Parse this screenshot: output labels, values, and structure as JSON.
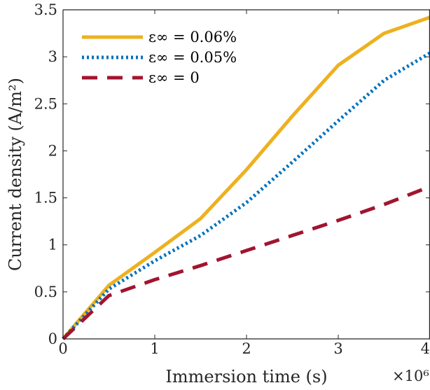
{
  "chart_data": {
    "type": "line",
    "xlabel": "Immersion time (s)",
    "ylabel": "Current density (A/m²)",
    "x_multiplier": "×10⁶",
    "xlim": [
      0,
      4
    ],
    "ylim": [
      0,
      3.5
    ],
    "x_ticks": [
      "0",
      "1",
      "2",
      "3",
      "4"
    ],
    "y_ticks": [
      "0",
      "0.5",
      "1",
      "1.5",
      "2",
      "2.5",
      "3",
      "3.5"
    ],
    "legend_position": "top-left",
    "series": [
      {
        "name": "ε∞ = 0.06%",
        "color": "#EDB120",
        "style": "solid",
        "x": [
          0,
          0.5,
          1,
          1.5,
          2,
          2.5,
          3,
          3.5,
          4
        ],
        "y": [
          0,
          0.57,
          0.92,
          1.28,
          1.8,
          2.37,
          2.91,
          3.25,
          3.42
        ]
      },
      {
        "name": "ε∞ = 0.05%",
        "color": "#0072BD",
        "style": "dotted",
        "x": [
          0,
          0.5,
          1,
          1.5,
          2,
          2.5,
          3,
          3.5,
          4
        ],
        "y": [
          0,
          0.53,
          0.83,
          1.1,
          1.45,
          1.88,
          2.32,
          2.75,
          3.04
        ]
      },
      {
        "name": "ε∞ = 0",
        "color": "#A2142F",
        "style": "dashed",
        "x": [
          0,
          0.5,
          1,
          1.5,
          2,
          2.5,
          3,
          3.5,
          4
        ],
        "y": [
          0,
          0.46,
          0.63,
          0.78,
          0.94,
          1.1,
          1.26,
          1.43,
          1.62
        ]
      }
    ]
  }
}
